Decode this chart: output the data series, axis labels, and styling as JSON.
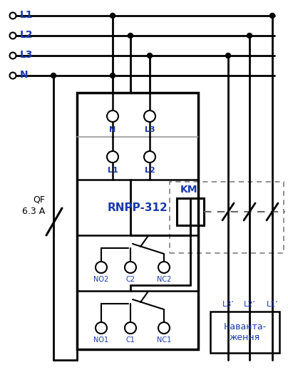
{
  "bg_color": "#ffffff",
  "line_color": "#000000",
  "blue_color": "#1a3aab",
  "figsize": [
    4.04,
    5.19
  ],
  "dpi": 100,
  "labels": {
    "L1": "L1",
    "L2": "L2",
    "L3": "L3",
    "N": "N",
    "QF": "QF",
    "QF2": "6.3 A",
    "KM": "KM",
    "RNPP": "RNPP-312",
    "NO2": "NO2",
    "C2": "C2",
    "NC2": "NC2",
    "NO1": "NO1",
    "C1": "C1",
    "NC1": "NC1",
    "L1p": "L1’",
    "L2p": "L2’",
    "L3p": "L3’",
    "nav": "Наванта-\nження",
    "N_pin": "N",
    "L3_pin": "L3",
    "L1_pin": "L1",
    "L2_pin": "L2"
  }
}
